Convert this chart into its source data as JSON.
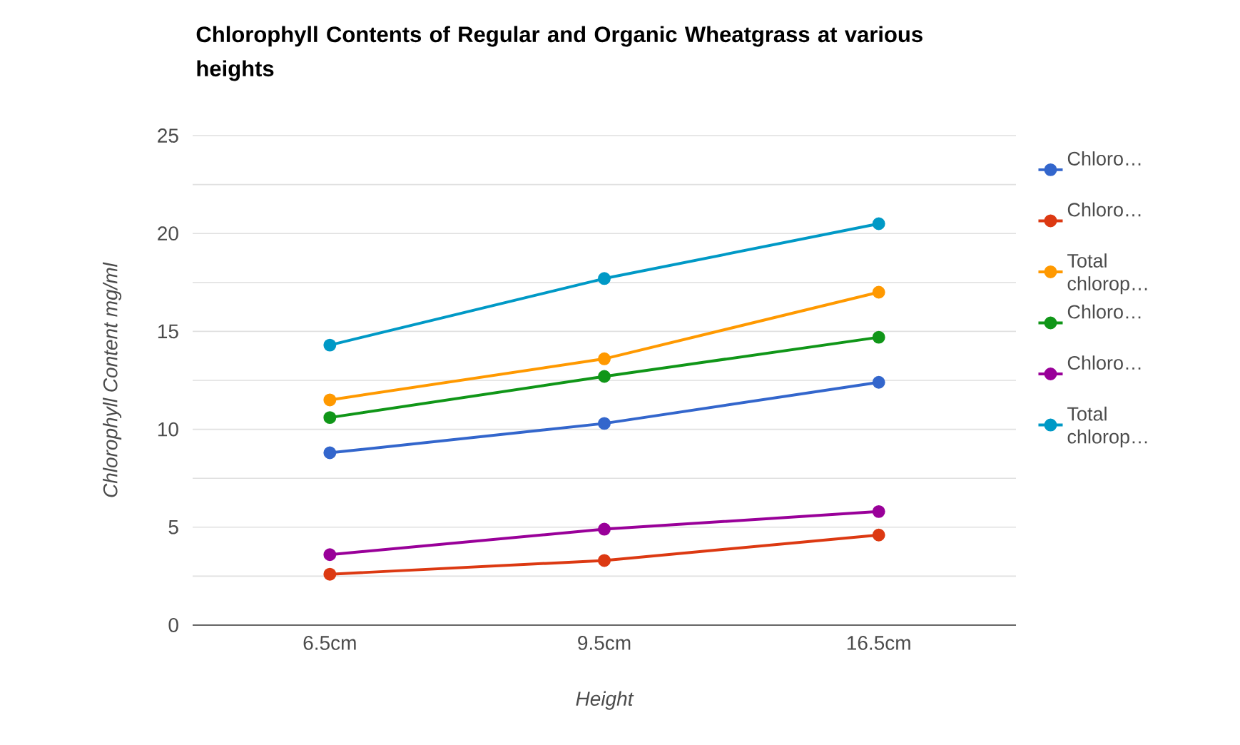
{
  "chart_data": {
    "type": "line",
    "title": "Chlorophyll Contents of Regular and Organic Wheatgrass at various heights",
    "xlabel": "Height",
    "ylabel": "Chlorophyll Content mg/ml",
    "categories": [
      "6.5cm",
      "9.5cm",
      "16.5cm"
    ],
    "series": [
      {
        "name": "Chloro…",
        "color": "#3366cc",
        "values": [
          8.8,
          10.3,
          12.4
        ]
      },
      {
        "name": "Chloro…",
        "color": "#dc3912",
        "values": [
          2.6,
          3.3,
          4.6
        ]
      },
      {
        "name": "Total chlorop…",
        "color": "#ff9900",
        "values": [
          11.5,
          13.6,
          17.0
        ]
      },
      {
        "name": "Chloro…",
        "color": "#109618",
        "values": [
          10.6,
          12.7,
          14.7
        ]
      },
      {
        "name": "Chloro…",
        "color": "#990099",
        "values": [
          3.6,
          4.9,
          5.8
        ]
      },
      {
        "name": "Total chlorop…",
        "color": "#0099c6",
        "values": [
          14.3,
          17.7,
          20.5
        ]
      }
    ],
    "ylim": [
      0,
      25
    ],
    "yticks": [
      0,
      {
        "value": 2.5,
        "label": null
      },
      5,
      {
        "value": 7.5,
        "label": null
      },
      10,
      {
        "value": 12.5,
        "label": null
      },
      15,
      {
        "value": 17.5,
        "label": null
      },
      20,
      {
        "value": 22.5,
        "label": null
      },
      25
    ],
    "grid": "y",
    "legend": "top right",
    "marker": "circle",
    "line_style": "solid"
  }
}
